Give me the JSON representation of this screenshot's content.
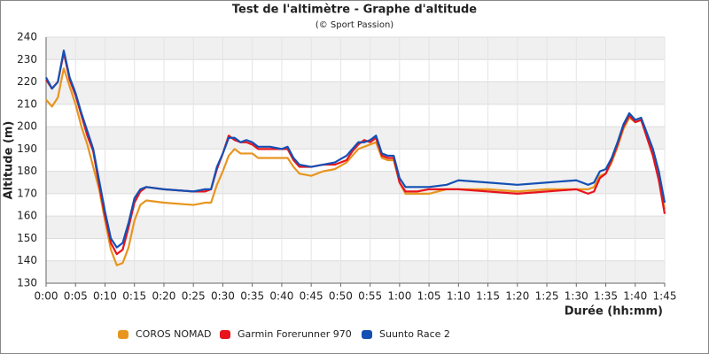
{
  "chart_data": {
    "type": "line",
    "title": "Test de l'altimètre - Graphe d'altitude",
    "subtitle": "(© Sport Passion)",
    "x_label": "Durée (hh:mm)",
    "y_label": "Altitude (m)",
    "x": [
      0,
      1,
      2,
      3,
      4,
      5,
      6,
      7,
      8,
      9,
      10,
      11,
      12,
      13,
      14,
      15,
      16,
      17,
      20,
      25,
      27,
      28,
      29,
      30,
      31,
      32,
      33,
      34,
      35,
      36,
      38,
      40,
      41,
      42,
      43,
      45,
      47,
      49,
      51,
      52,
      53,
      54,
      55,
      56,
      57,
      58,
      59,
      60,
      61,
      63,
      65,
      68,
      70,
      75,
      80,
      85,
      90,
      92,
      93,
      94,
      95,
      96,
      97,
      98,
      99,
      100,
      101,
      102,
      103,
      104,
      105
    ],
    "series": [
      {
        "name": "COROS NOMAD",
        "color": "#e8951f",
        "values": [
          212,
          209,
          213,
          226,
          218,
          210,
          200,
          192,
          182,
          172,
          158,
          145,
          138,
          139,
          146,
          158,
          165,
          167,
          166,
          165,
          166,
          166,
          174,
          180,
          187,
          190,
          188,
          188,
          188,
          186,
          186,
          186,
          186,
          182,
          179,
          178,
          180,
          181,
          184,
          187,
          190,
          191,
          192,
          193,
          186,
          185,
          185,
          175,
          170,
          170,
          170,
          172,
          172,
          172,
          171,
          172,
          172,
          172,
          173,
          178,
          179,
          184,
          191,
          199,
          204,
          202,
          203,
          196,
          188,
          178,
          163
        ]
      },
      {
        "name": "Garmin Forerunner 970",
        "color": "#e8141c",
        "values": [
          221,
          217,
          220,
          233,
          221,
          214,
          205,
          196,
          189,
          174,
          160,
          148,
          143,
          145,
          155,
          166,
          171,
          173,
          172,
          171,
          171,
          172,
          181,
          188,
          196,
          194,
          193,
          193,
          192,
          190,
          190,
          190,
          190,
          185,
          182,
          182,
          183,
          183,
          185,
          189,
          192,
          194,
          193,
          195,
          187,
          186,
          186,
          175,
          171,
          171,
          172,
          172,
          172,
          171,
          170,
          171,
          172,
          170,
          171,
          177,
          179,
          185,
          192,
          200,
          205,
          202,
          203,
          195,
          187,
          176,
          161
        ]
      },
      {
        "name": "Suunto Race 2",
        "color": "#1450b4",
        "values": [
          222,
          217,
          220,
          234,
          222,
          215,
          206,
          198,
          190,
          176,
          162,
          150,
          146,
          148,
          157,
          168,
          172,
          173,
          172,
          171,
          172,
          172,
          182,
          188,
          195,
          195,
          193,
          194,
          193,
          191,
          191,
          190,
          191,
          186,
          183,
          182,
          183,
          184,
          187,
          190,
          193,
          193,
          194,
          196,
          188,
          187,
          187,
          177,
          173,
          173,
          173,
          174,
          176,
          175,
          174,
          175,
          176,
          174,
          175,
          180,
          181,
          186,
          193,
          201,
          206,
          203,
          204,
          197,
          190,
          180,
          166
        ]
      }
    ],
    "xlim": [
      0,
      105
    ],
    "xticks": [
      {
        "value": 0,
        "label": "0:00"
      },
      {
        "value": 5,
        "label": "0:05"
      },
      {
        "value": 10,
        "label": "0:10"
      },
      {
        "value": 15,
        "label": "0:15"
      },
      {
        "value": 20,
        "label": "0:20"
      },
      {
        "value": 25,
        "label": "0:25"
      },
      {
        "value": 30,
        "label": "0:30"
      },
      {
        "value": 35,
        "label": "0:35"
      },
      {
        "value": 40,
        "label": "0:40"
      },
      {
        "value": 45,
        "label": "0:45"
      },
      {
        "value": 50,
        "label": "0:50"
      },
      {
        "value": 55,
        "label": "0:55"
      },
      {
        "value": 60,
        "label": "1:00"
      },
      {
        "value": 65,
        "label": "1:05"
      },
      {
        "value": 70,
        "label": "1:10"
      },
      {
        "value": 75,
        "label": "1:15"
      },
      {
        "value": 80,
        "label": "1:20"
      },
      {
        "value": 85,
        "label": "1:25"
      },
      {
        "value": 90,
        "label": "1:30"
      },
      {
        "value": 95,
        "label": "1:35"
      },
      {
        "value": 100,
        "label": "1:40"
      },
      {
        "value": 105,
        "label": "1:45"
      }
    ],
    "ylim": [
      130,
      240
    ],
    "yticks": [
      130,
      140,
      150,
      160,
      170,
      180,
      190,
      200,
      210,
      220,
      230,
      240
    ],
    "grid": true
  }
}
